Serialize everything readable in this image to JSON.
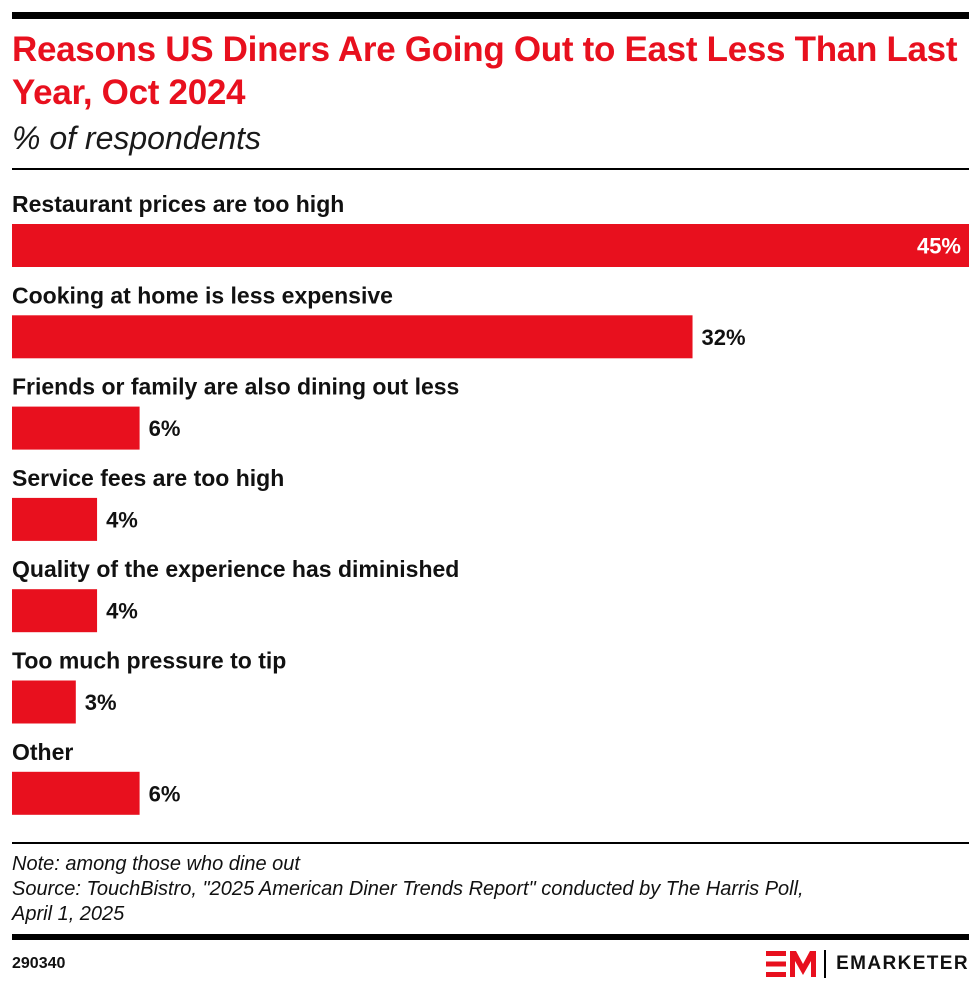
{
  "header": {
    "title": "Reasons US Diners Are Going Out to East Less Than Last Year, Oct 2024",
    "subtitle": "% of respondents"
  },
  "chart_data": {
    "type": "bar",
    "orientation": "horizontal",
    "categories": [
      "Restaurant prices are too high",
      "Cooking at home is less expensive",
      "Friends or family are also dining out less",
      "Service fees are too high",
      "Quality of the experience has diminished",
      "Too much pressure to tip",
      "Other"
    ],
    "values": [
      45,
      32,
      6,
      4,
      4,
      3,
      6
    ],
    "value_labels": [
      "45%",
      "32%",
      "6%",
      "4%",
      "4%",
      "3%",
      "6%"
    ],
    "xlim": [
      0,
      45
    ],
    "grid": false,
    "bar_color": "#e8101e"
  },
  "footer": {
    "note": "Note: among those who dine out",
    "source_line1": "Source: TouchBistro, \"2025 American Diner Trends Report\" conducted by The Harris Poll,",
    "source_line2": "April 1, 2025",
    "chart_id": "290340",
    "brand_name": "EMARKETER"
  },
  "colors": {
    "accent": "#e8101e",
    "text": "#111111"
  }
}
